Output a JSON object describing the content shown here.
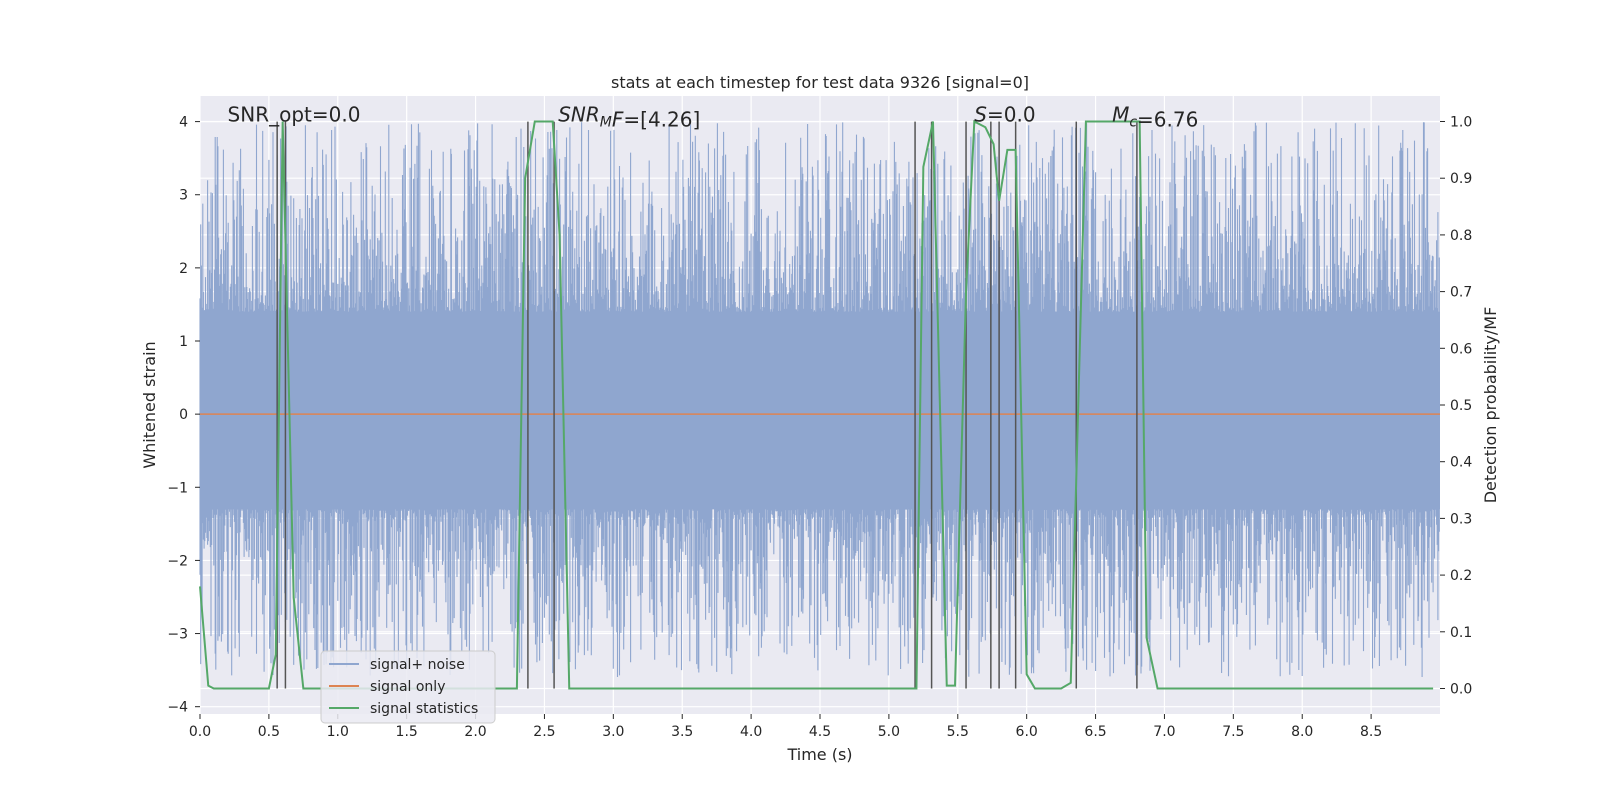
{
  "chart_data": {
    "type": "line",
    "title": "stats at each timestep for test data 9326 [signal=0]",
    "xlabel": "Time (s)",
    "ylabel": "Whitened strain",
    "y2label": "Detection probability/MF",
    "xlim": [
      0.0,
      9.0
    ],
    "ylim": [
      -4.1,
      4.35
    ],
    "y2lim": [
      -0.045,
      1.045
    ],
    "xticks": [
      0.0,
      0.5,
      1.0,
      1.5,
      2.0,
      2.5,
      3.0,
      3.5,
      4.0,
      4.5,
      5.0,
      5.5,
      6.0,
      6.5,
      7.0,
      7.5,
      8.0,
      8.5
    ],
    "xtick_labels": [
      "0.0",
      "0.5",
      "1.0",
      "1.5",
      "2.0",
      "2.5",
      "3.0",
      "3.5",
      "4.0",
      "4.5",
      "5.0",
      "5.5",
      "6.0",
      "6.5",
      "7.0",
      "7.5",
      "8.0",
      "8.5"
    ],
    "yticks": [
      -4,
      -3,
      -2,
      -1,
      0,
      1,
      2,
      3,
      4
    ],
    "ytick_labels": [
      "−4",
      "−3",
      "−2",
      "−1",
      "0",
      "1",
      "2",
      "3",
      "4"
    ],
    "y2ticks": [
      0.0,
      0.1,
      0.2,
      0.3,
      0.4,
      0.5,
      0.6,
      0.7,
      0.8,
      0.9,
      1.0
    ],
    "y2tick_labels": [
      "0.0",
      "0.1",
      "0.2",
      "0.3",
      "0.4",
      "0.5",
      "0.6",
      "0.7",
      "0.8",
      "0.9",
      "1.0"
    ],
    "grid": true,
    "legend_position": "lower-left",
    "annotations": [
      {
        "id": "snr-opt",
        "x": 0.2,
        "y": 4.1,
        "parts": [
          {
            "text": "SNR_opt=0.0"
          }
        ]
      },
      {
        "id": "snr-mf",
        "x": 2.6,
        "y": 4.1,
        "parts": [
          {
            "text": "SNR",
            "italic": true
          },
          {
            "text": "M",
            "italic": true,
            "sub": true
          },
          {
            "text": "F",
            "italic": true
          },
          {
            "text": "=[4.26]"
          }
        ]
      },
      {
        "id": "s-stat",
        "x": 5.62,
        "y": 4.1,
        "parts": [
          {
            "text": "S",
            "italic": true
          },
          {
            "text": "=0.0"
          }
        ]
      },
      {
        "id": "mc",
        "x": 6.62,
        "y": 4.1,
        "parts": [
          {
            "text": "M",
            "italic": true
          },
          {
            "text": "c",
            "italic": true,
            "sub": true
          },
          {
            "text": "=6.76"
          }
        ]
      }
    ],
    "series": [
      {
        "name": "signal+ noise",
        "color": "#8fa6cf",
        "axis": "left",
        "style": "noise",
        "description_values": {
          "core_band": [
            -1.3,
            1.4
          ],
          "peak_range": [
            -3.6,
            4.0
          ]
        }
      },
      {
        "name": "signal only",
        "color": "#dd8452",
        "axis": "left",
        "x": [
          0.0,
          9.0
        ],
        "y": [
          0.0,
          0.0
        ]
      },
      {
        "name": "signal statistics",
        "color": "#55a868",
        "axis": "right",
        "x": [
          0.0,
          0.06,
          0.1,
          0.5,
          0.55,
          0.6,
          0.68,
          0.75,
          2.3,
          2.36,
          2.43,
          2.56,
          2.61,
          2.68,
          5.2,
          5.25,
          5.32,
          5.42,
          5.48,
          5.56,
          5.62,
          5.7,
          5.76,
          5.8,
          5.86,
          5.92,
          6.0,
          6.06,
          6.25,
          6.32,
          6.43,
          6.48,
          6.82,
          6.87,
          6.95,
          8.95
        ],
        "y": [
          0.18,
          0.005,
          0.0,
          0.0,
          0.06,
          1.0,
          0.16,
          0.0,
          0.0,
          0.9,
          1.0,
          1.0,
          0.8,
          0.0,
          0.0,
          0.92,
          1.0,
          0.005,
          0.005,
          0.7,
          1.0,
          0.99,
          0.96,
          0.86,
          0.95,
          0.95,
          0.025,
          0.0,
          0.0,
          0.01,
          1.0,
          1.0,
          1.0,
          0.09,
          0.0,
          0.0
        ]
      }
    ],
    "vlines": [
      0.56,
      0.62,
      2.38,
      2.57,
      5.19,
      5.31,
      5.56,
      5.74,
      5.8,
      5.92,
      6.36,
      6.8
    ],
    "vline_color": "#555555"
  }
}
